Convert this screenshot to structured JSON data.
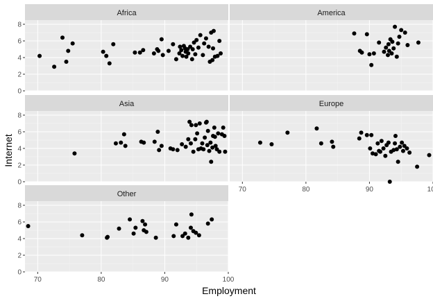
{
  "colors": {
    "panel_bg": "#EBEBEB",
    "strip_bg": "#D9D9D9",
    "grid_major": "#FFFFFF",
    "grid_minor": "#F5F5F5",
    "point": "#000000",
    "tick": "#333333"
  },
  "chart_data": {
    "type": "scatter",
    "facet_layout": "wrap, 2 columns",
    "xlabel": "Employment",
    "ylabel": "Internet",
    "xlim": [
      68,
      100
    ],
    "ylim": [
      0,
      8.5
    ],
    "x_ticks": [
      70,
      80,
      90,
      100
    ],
    "y_ticks": [
      0,
      2,
      4,
      6,
      8
    ],
    "grid": true,
    "panels": [
      {
        "name": "Africa",
        "points": [
          [
            70.3,
            4.2
          ],
          [
            72.6,
            2.9
          ],
          [
            73.9,
            6.4
          ],
          [
            74.5,
            3.5
          ],
          [
            74.8,
            4.8
          ],
          [
            75.5,
            5.7
          ],
          [
            80.3,
            4.7
          ],
          [
            80.8,
            4.2
          ],
          [
            81.3,
            3.3
          ],
          [
            81.9,
            5.6
          ],
          [
            85.3,
            4.6
          ],
          [
            86.1,
            4.6
          ],
          [
            86.6,
            4.9
          ],
          [
            88.3,
            4.5
          ],
          [
            88.8,
            5.0
          ],
          [
            89.0,
            4.8
          ],
          [
            89.5,
            6.2
          ],
          [
            89.7,
            4.3
          ],
          [
            90.6,
            4.8
          ],
          [
            91.3,
            5.6
          ],
          [
            91.8,
            3.8
          ],
          [
            92.3,
            4.5
          ],
          [
            92.4,
            5.3
          ],
          [
            92.6,
            4.9
          ],
          [
            92.8,
            4.2
          ],
          [
            93.0,
            5.4
          ],
          [
            93.2,
            5.1
          ],
          [
            93.3,
            4.7
          ],
          [
            93.4,
            4.1
          ],
          [
            93.6,
            5.0
          ],
          [
            93.7,
            4.5
          ],
          [
            94.0,
            5.3
          ],
          [
            94.3,
            3.8
          ],
          [
            94.4,
            5.0
          ],
          [
            94.6,
            5.8
          ],
          [
            94.8,
            4.4
          ],
          [
            95.0,
            6.1
          ],
          [
            95.3,
            5.2
          ],
          [
            95.6,
            6.7
          ],
          [
            96.0,
            4.3
          ],
          [
            96.2,
            5.7
          ],
          [
            96.5,
            6.3
          ],
          [
            96.9,
            5.3
          ],
          [
            97.1,
            3.5
          ],
          [
            97.3,
            7.0
          ],
          [
            97.5,
            3.7
          ],
          [
            97.6,
            5.1
          ],
          [
            97.7,
            7.2
          ],
          [
            97.9,
            4.1
          ],
          [
            98.3,
            4.2
          ],
          [
            98.6,
            6.0
          ],
          [
            98.8,
            4.5
          ]
        ]
      },
      {
        "name": "America",
        "points": [
          [
            87.6,
            6.9
          ],
          [
            88.5,
            4.8
          ],
          [
            88.8,
            4.6
          ],
          [
            89.6,
            6.8
          ],
          [
            90.0,
            4.4
          ],
          [
            90.3,
            3.1
          ],
          [
            90.7,
            4.5
          ],
          [
            91.5,
            5.8
          ],
          [
            92.3,
            4.7
          ],
          [
            92.6,
            5.2
          ],
          [
            92.9,
            4.3
          ],
          [
            93.0,
            5.6
          ],
          [
            93.1,
            4.8
          ],
          [
            93.3,
            6.2
          ],
          [
            93.5,
            4.5
          ],
          [
            93.6,
            5.9
          ],
          [
            93.8,
            5.1
          ],
          [
            94.0,
            7.7
          ],
          [
            94.3,
            4.1
          ],
          [
            94.5,
            5.7
          ],
          [
            94.7,
            6.5
          ],
          [
            95.0,
            7.3
          ],
          [
            95.6,
            7.0
          ],
          [
            96.0,
            5.5
          ],
          [
            97.7,
            5.8
          ]
        ]
      },
      {
        "name": "Asia",
        "points": [
          [
            75.8,
            3.4
          ],
          [
            82.3,
            4.6
          ],
          [
            83.1,
            4.7
          ],
          [
            83.6,
            5.7
          ],
          [
            83.8,
            4.3
          ],
          [
            86.3,
            4.8
          ],
          [
            86.7,
            4.7
          ],
          [
            88.4,
            4.8
          ],
          [
            88.9,
            6.0
          ],
          [
            89.1,
            3.8
          ],
          [
            89.5,
            4.3
          ],
          [
            90.9,
            4.0
          ],
          [
            91.3,
            3.9
          ],
          [
            92.0,
            3.8
          ],
          [
            92.7,
            4.5
          ],
          [
            93.3,
            4.2
          ],
          [
            93.7,
            5.1
          ],
          [
            93.9,
            7.2
          ],
          [
            94.1,
            4.6
          ],
          [
            94.2,
            6.8
          ],
          [
            94.5,
            3.6
          ],
          [
            94.8,
            5.1
          ],
          [
            94.9,
            6.8
          ],
          [
            95.1,
            5.8
          ],
          [
            95.3,
            3.9
          ],
          [
            95.5,
            7.0
          ],
          [
            95.7,
            4.0
          ],
          [
            95.9,
            4.6
          ],
          [
            96.1,
            3.9
          ],
          [
            96.3,
            5.3
          ],
          [
            96.5,
            7.1
          ],
          [
            96.6,
            7.2
          ],
          [
            96.7,
            4.4
          ],
          [
            96.8,
            6.1
          ],
          [
            97.0,
            3.7
          ],
          [
            97.2,
            4.7
          ],
          [
            97.3,
            2.4
          ],
          [
            97.5,
            4.1
          ],
          [
            97.6,
            5.5
          ],
          [
            97.8,
            6.5
          ],
          [
            97.9,
            5.4
          ],
          [
            98.0,
            4.3
          ],
          [
            98.2,
            3.9
          ],
          [
            98.4,
            5.8
          ],
          [
            98.6,
            3.6
          ],
          [
            99.0,
            5.7
          ],
          [
            99.2,
            6.5
          ],
          [
            99.4,
            5.5
          ],
          [
            99.5,
            3.6
          ]
        ]
      },
      {
        "name": "Europe",
        "points": [
          [
            72.8,
            4.7
          ],
          [
            74.6,
            4.5
          ],
          [
            77.1,
            5.9
          ],
          [
            81.7,
            6.4
          ],
          [
            82.4,
            4.6
          ],
          [
            84.1,
            4.8
          ],
          [
            84.3,
            4.2
          ],
          [
            88.4,
            5.2
          ],
          [
            88.7,
            5.9
          ],
          [
            89.6,
            5.6
          ],
          [
            90.1,
            4.0
          ],
          [
            90.3,
            5.6
          ],
          [
            90.5,
            3.4
          ],
          [
            91.0,
            3.3
          ],
          [
            91.3,
            4.6
          ],
          [
            91.5,
            3.7
          ],
          [
            91.7,
            3.6
          ],
          [
            91.9,
            4.9
          ],
          [
            92.2,
            4.0
          ],
          [
            92.5,
            3.1
          ],
          [
            92.7,
            4.4
          ],
          [
            93.0,
            4.7
          ],
          [
            93.2,
            0.0
          ],
          [
            93.4,
            3.6
          ],
          [
            93.8,
            3.8
          ],
          [
            94.0,
            4.6
          ],
          [
            94.1,
            5.5
          ],
          [
            94.3,
            3.9
          ],
          [
            94.5,
            2.4
          ],
          [
            94.8,
            4.2
          ],
          [
            95.1,
            4.7
          ],
          [
            95.3,
            3.7
          ],
          [
            95.5,
            4.3
          ],
          [
            95.9,
            4.0
          ],
          [
            96.3,
            3.5
          ],
          [
            97.5,
            1.8
          ],
          [
            99.4,
            3.2
          ]
        ]
      },
      {
        "name": "Other",
        "points": [
          [
            68.5,
            5.5
          ],
          [
            77.0,
            4.4
          ],
          [
            80.9,
            4.1
          ],
          [
            81.0,
            4.2
          ],
          [
            82.8,
            5.2
          ],
          [
            84.5,
            6.3
          ],
          [
            85.1,
            4.6
          ],
          [
            85.4,
            5.3
          ],
          [
            86.5,
            6.1
          ],
          [
            86.7,
            5.0
          ],
          [
            86.9,
            5.7
          ],
          [
            87.1,
            4.8
          ],
          [
            88.6,
            4.1
          ],
          [
            91.4,
            4.3
          ],
          [
            91.8,
            5.7
          ],
          [
            92.8,
            4.3
          ],
          [
            93.2,
            4.6
          ],
          [
            93.7,
            4.1
          ],
          [
            94.1,
            5.3
          ],
          [
            94.2,
            6.9
          ],
          [
            94.5,
            4.9
          ],
          [
            94.9,
            4.7
          ],
          [
            95.4,
            4.4
          ],
          [
            96.8,
            5.8
          ],
          [
            97.4,
            6.3
          ]
        ]
      }
    ]
  }
}
